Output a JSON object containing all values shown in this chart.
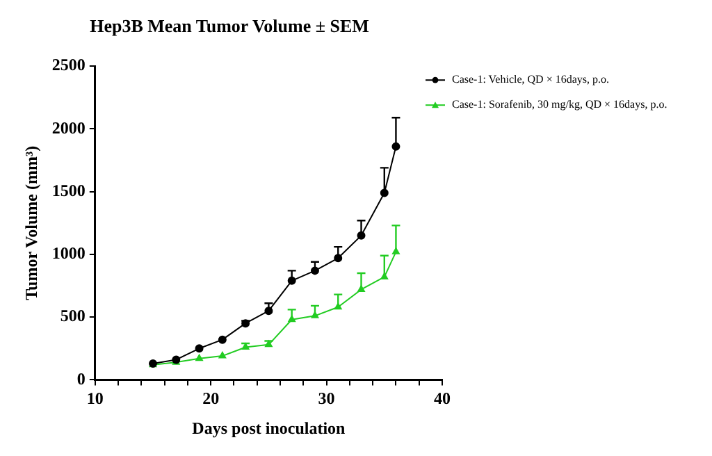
{
  "chart_data": {
    "type": "line",
    "title": "Hep3B Mean Tumor Volume ± SEM",
    "xlabel": "Days post inoculation",
    "ylabel": "Tumor Volume (mm³)",
    "x": [
      15,
      17,
      19,
      21,
      23,
      25,
      27,
      29,
      31,
      33,
      35,
      36
    ],
    "series": [
      {
        "name": "Case-1: Vehicle, QD × 16days, p.o.",
        "color": "#000000",
        "marker": "circle",
        "values": [
          130,
          160,
          250,
          320,
          450,
          550,
          790,
          870,
          970,
          1150,
          1490,
          1860
        ],
        "errors": [
          null,
          null,
          null,
          null,
          [
            450,
            470
          ],
          [
            550,
            610
          ],
          [
            790,
            870
          ],
          [
            870,
            940
          ],
          [
            970,
            1060
          ],
          [
            1150,
            1270
          ],
          [
            1490,
            1690
          ],
          [
            1860,
            2090
          ]
        ]
      },
      {
        "name": "Case-1: Sorafenib, 30 mg/kg, QD × 16days, p.o.",
        "color": "#22cc22",
        "marker": "triangle",
        "values": [
          120,
          140,
          170,
          190,
          260,
          280,
          480,
          510,
          580,
          720,
          820,
          1020
        ],
        "errors": [
          null,
          null,
          null,
          null,
          [
            260,
            290
          ],
          [
            280,
            310
          ],
          [
            480,
            560
          ],
          [
            510,
            590
          ],
          [
            580,
            680
          ],
          [
            720,
            850
          ],
          [
            820,
            990
          ],
          [
            1020,
            1230
          ]
        ]
      }
    ],
    "xlim": [
      10,
      40
    ],
    "xticks": [
      10,
      {
        "value": 12,
        "label": null
      },
      {
        "value": 14,
        "label": null
      },
      {
        "value": 16,
        "label": null
      },
      {
        "value": 18,
        "label": null
      },
      20,
      {
        "value": 22,
        "label": null
      },
      {
        "value": 24,
        "label": null
      },
      {
        "value": 26,
        "label": null
      },
      {
        "value": 28,
        "label": null
      },
      30,
      {
        "value": 32,
        "label": null
      },
      {
        "value": 34,
        "label": null
      },
      {
        "value": 36,
        "label": null
      },
      {
        "value": 38,
        "label": null
      },
      40
    ],
    "ylim": [
      0,
      2500
    ],
    "yticks": [
      0,
      500,
      1000,
      1500,
      2000,
      2500
    ],
    "grid": false,
    "legend": "right",
    "line_style": "solid"
  }
}
